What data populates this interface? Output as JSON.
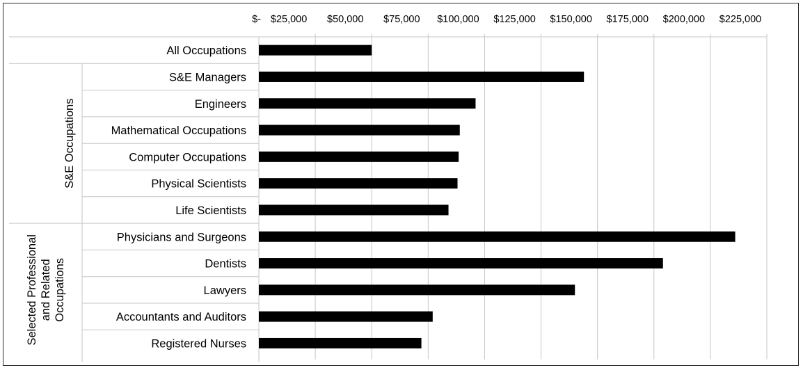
{
  "chart_data": {
    "type": "bar",
    "orientation": "horizontal",
    "title": "",
    "xlabel": "",
    "ylabel": "",
    "xlim": [
      0,
      225000
    ],
    "x_ticks": [
      0,
      25000,
      50000,
      75000,
      100000,
      125000,
      150000,
      175000,
      200000,
      225000
    ],
    "x_tick_labels": [
      "$-",
      "$25,000",
      "$50,000",
      "$75,000",
      "$100,000",
      "$125,000",
      "$150,000",
      "$175,000",
      "$200,000",
      "$225,000"
    ],
    "x_axis_position": "top",
    "grid": "vertical",
    "legend": "none",
    "bar_color": "#000000",
    "categories": [
      "All Occupations",
      "S&E Managers",
      "Engineers",
      "Mathematical Occupations",
      "Computer Occupations",
      "Physical Scientists",
      "Life Scientists",
      "Physicians and Surgeons",
      "Dentists",
      "Lawyers",
      "Accountants and Auditors",
      "Registered Nurses"
    ],
    "values": [
      50000,
      144000,
      96000,
      89000,
      88500,
      88000,
      84000,
      211000,
      179000,
      140000,
      77000,
      72000
    ],
    "groups": [
      {
        "label": "",
        "count": 1
      },
      {
        "label": "S&E Occupations",
        "count": 6
      },
      {
        "label": "Selected Professional and Related Occupations",
        "lines": [
          "Selected Professional",
          "and Related",
          "Occupations"
        ],
        "count": 5
      }
    ]
  }
}
